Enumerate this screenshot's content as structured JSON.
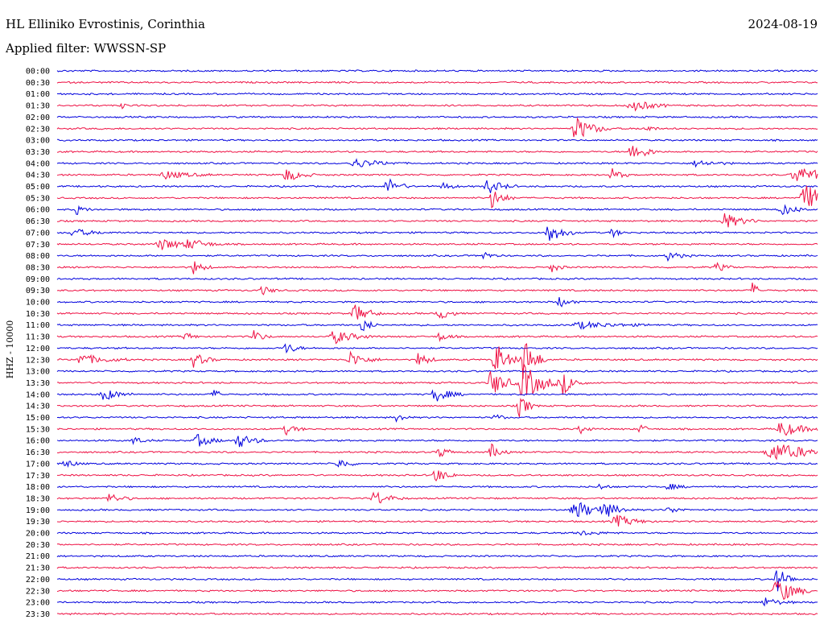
{
  "header": {
    "station": "HL Elliniko Evrostinis, Corinthia",
    "date": "2024-08-19",
    "filter": "Applied filter: WWSSN-SP"
  },
  "chart_data": {
    "type": "line",
    "ylabel": "HHZ - 10000",
    "row_labels": [
      "00:00",
      "00:30",
      "01:00",
      "01:30",
      "02:00",
      "02:30",
      "03:00",
      "03:30",
      "04:00",
      "04:30",
      "05:00",
      "05:30",
      "06:00",
      "06:30",
      "07:00",
      "07:30",
      "08:00",
      "08:30",
      "09:00",
      "09:30",
      "10:00",
      "10:30",
      "11:00",
      "11:30",
      "12:00",
      "12:30",
      "13:00",
      "13:30",
      "14:00",
      "14:30",
      "15:00",
      "15:30",
      "16:00",
      "16:30",
      "17:00",
      "17:30",
      "18:00",
      "18:30",
      "19:00",
      "19:30",
      "20:00",
      "20:30",
      "21:00",
      "21:30",
      "22:00",
      "22:30",
      "23:00",
      "23:30"
    ],
    "colors": {
      "even_rows": "#0000dd",
      "odd_rows": "#ee1144"
    }
  }
}
